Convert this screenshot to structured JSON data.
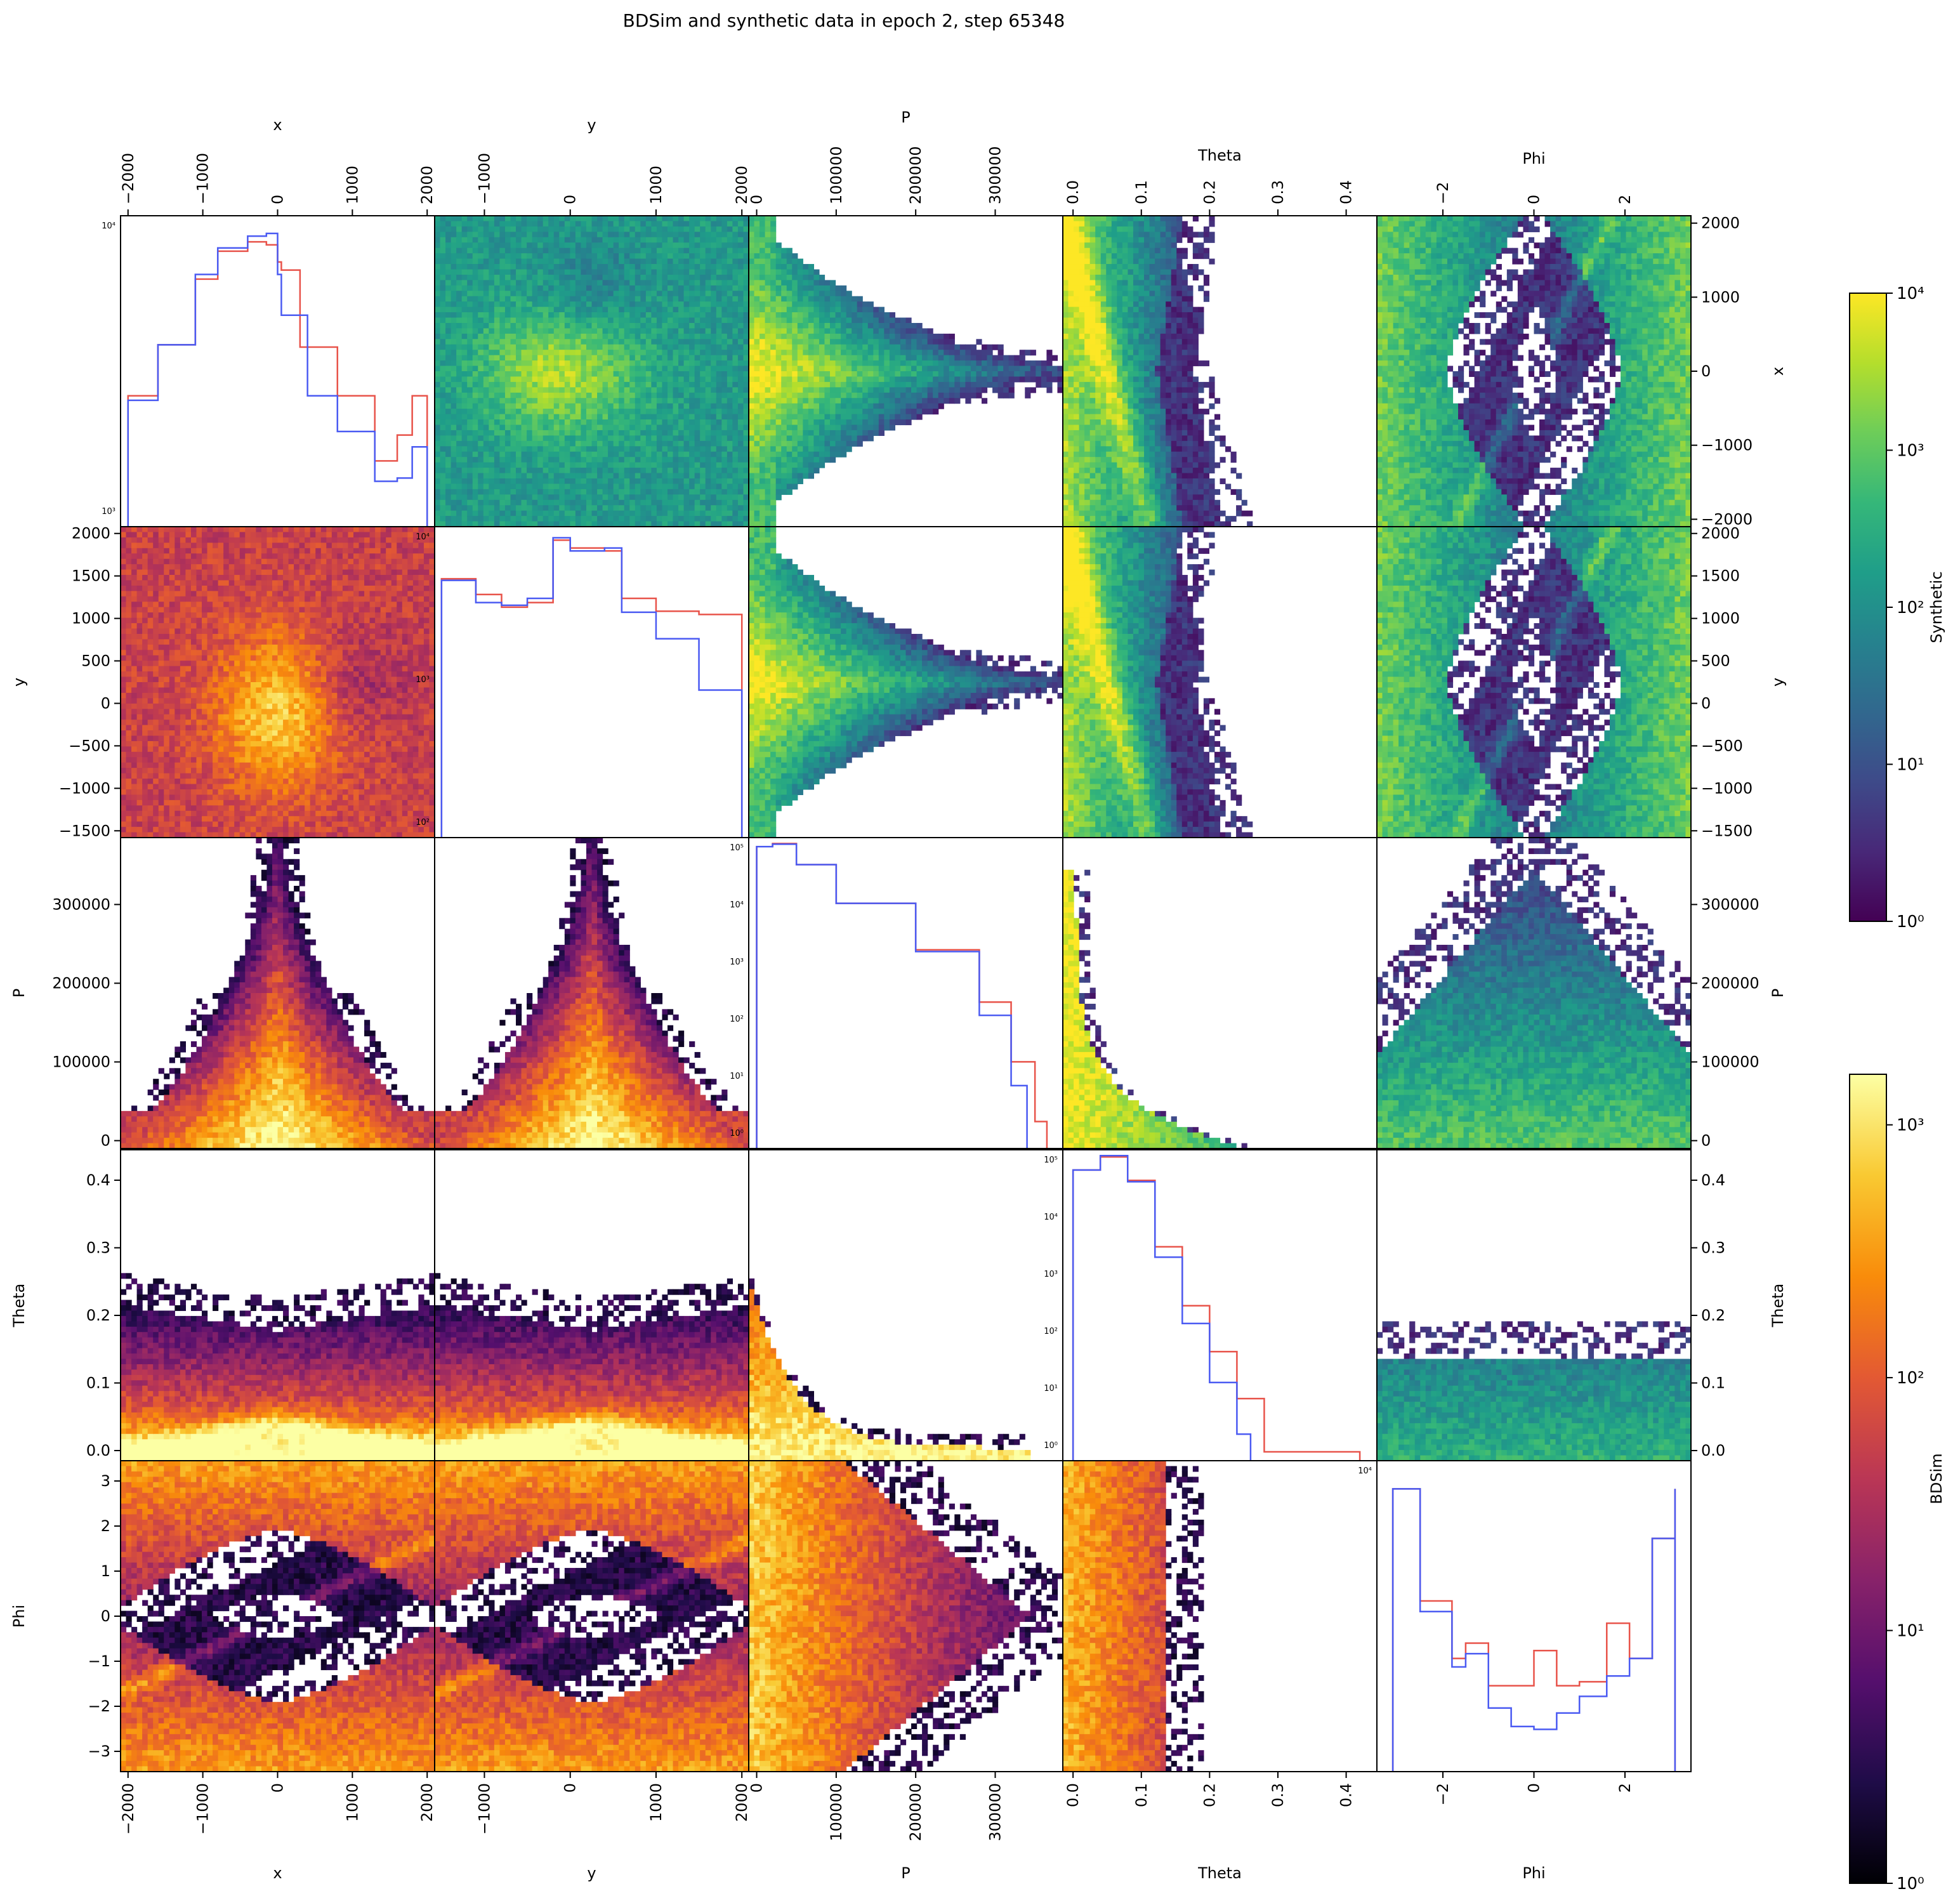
{
  "title": "BDSim and synthetic data in epoch 2, step 65348",
  "variables": [
    "x",
    "y",
    "P",
    "Theta",
    "Phi"
  ],
  "colors": {
    "bdsim_line": "#e8534a",
    "synthetic_line": "#4a5af2"
  },
  "colorbars": [
    {
      "label": "Synthetic",
      "colormap": "viridis",
      "scale": "log",
      "ticks": [
        "10⁰",
        "10¹",
        "10²",
        "10³",
        "10⁴"
      ]
    },
    {
      "label": "BDSim",
      "colormap": "inferno",
      "scale": "log",
      "ticks": [
        "10⁰",
        "10¹",
        "10²",
        "10³"
      ]
    }
  ],
  "chart_data": {
    "type": "heatmap",
    "layout": "pair-plot 5x5: diagonal = 1D histograms (red BDSim, blue Synthetic); upper triangle = Synthetic 2D histograms (viridis); lower triangle = BDSim 2D histograms (inferno)",
    "axes": {
      "x": {
        "label": "x",
        "lim": [
          -2100,
          2100
        ],
        "ticks": [
          -2000,
          -1000,
          0,
          1000,
          2000
        ]
      },
      "y": {
        "label": "y",
        "lim": [
          -1580,
          2080
        ],
        "ticks": [
          -1500,
          -1000,
          -500,
          0,
          500,
          1000,
          1500,
          2000
        ]
      },
      "P": {
        "label": "P",
        "lim": [
          -10000,
          385000
        ],
        "ticks": [
          0,
          100000,
          200000,
          300000
        ]
      },
      "Theta": {
        "label": "Theta",
        "lim": [
          -0.015,
          0.445
        ],
        "ticks": [
          0.0,
          0.1,
          0.2,
          0.3,
          0.4
        ]
      },
      "Phi": {
        "label": "Phi",
        "lim": [
          -3.45,
          3.45
        ],
        "ticks": [
          -3,
          -2,
          -1,
          0,
          1,
          2,
          3
        ]
      }
    },
    "top_tick_labels": {
      "x": [
        "−2000",
        "−1000",
        "0",
        "1000",
        "2000"
      ],
      "y": [
        "−1000",
        "0",
        "1000",
        "2000"
      ],
      "P": [
        "0",
        "100000",
        "200000",
        "300000"
      ],
      "Theta": [
        "0.0",
        "0.1",
        "0.2",
        "0.3",
        "0.4"
      ],
      "Phi": [
        "−2",
        "0",
        "2"
      ]
    },
    "left_tick_labels": {
      "y": [
        "−1500",
        "−1000",
        "−500",
        "0",
        "500",
        "1000",
        "1500",
        "2000"
      ],
      "P": [
        "0",
        "100000",
        "200000",
        "300000"
      ],
      "Theta": [
        "0.0",
        "0.1",
        "0.2",
        "0.3",
        "0.4"
      ],
      "Phi": [
        "−3",
        "−2",
        "−1",
        "0",
        "1",
        "2",
        "3"
      ]
    },
    "right_tick_labels": {
      "x": [
        "−2000",
        "−1000",
        "0",
        "1000",
        "2000"
      ],
      "y": [
        "−1500",
        "−1000",
        "−500",
        "0",
        "500",
        "1000",
        "1500",
        "2000"
      ],
      "P": [
        "0",
        "100000",
        "200000",
        "300000"
      ],
      "Theta": [
        "0.0",
        "0.1",
        "0.2",
        "0.3",
        "0.4"
      ]
    },
    "diag_y_labels": {
      "x": [
        "10⁴",
        "10³"
      ],
      "y": [
        "10⁴",
        "10³",
        "10²"
      ],
      "P": [
        "10⁵",
        "10⁴",
        "10³",
        "10²",
        "10¹",
        "10⁰"
      ],
      "Theta": [
        "10⁵",
        "10⁴",
        "10³",
        "10²",
        "10¹",
        "10⁰"
      ],
      "Phi": [
        "10⁴"
      ]
    },
    "histograms": {
      "x": {
        "bdsim": [
          [
            -2000,
            3500
          ],
          [
            -1600,
            6800
          ],
          [
            -1100,
            16000
          ],
          [
            -800,
            23000
          ],
          [
            -400,
            26000
          ],
          [
            -150,
            25000
          ],
          [
            0,
            20000
          ],
          [
            50,
            18000
          ],
          [
            300,
            6600
          ],
          [
            800,
            3500
          ],
          [
            1300,
            1500
          ],
          [
            1600,
            2100
          ],
          [
            1800,
            3500
          ],
          [
            2000,
            3500
          ]
        ],
        "synthetic": [
          [
            -2000,
            3300
          ],
          [
            -1600,
            6800
          ],
          [
            -1100,
            17000
          ],
          [
            -800,
            24000
          ],
          [
            -400,
            28000
          ],
          [
            -150,
            29000
          ],
          [
            0,
            17000
          ],
          [
            50,
            10000
          ],
          [
            400,
            3500
          ],
          [
            800,
            2200
          ],
          [
            1300,
            1150
          ],
          [
            1600,
            1200
          ],
          [
            1800,
            1800
          ],
          [
            2000,
            900
          ]
        ]
      },
      "y": {
        "bdsim": [
          [
            -1500,
            9000
          ],
          [
            -1100,
            6500
          ],
          [
            -800,
            5000
          ],
          [
            -500,
            5500
          ],
          [
            -200,
            20000
          ],
          [
            0,
            17000
          ],
          [
            400,
            16000
          ],
          [
            600,
            6000
          ],
          [
            1000,
            4600
          ],
          [
            1500,
            4300
          ],
          [
            2000,
            3600
          ]
        ],
        "synthetic": [
          [
            -1500,
            8700
          ],
          [
            -1100,
            5500
          ],
          [
            -800,
            5200
          ],
          [
            -500,
            6000
          ],
          [
            -200,
            21000
          ],
          [
            0,
            16000
          ],
          [
            400,
            17000
          ],
          [
            600,
            4500
          ],
          [
            1000,
            2600
          ],
          [
            1500,
            900
          ],
          [
            2000,
            60
          ]
        ]
      },
      "P": {
        "bdsim": [
          [
            0,
            80000
          ],
          [
            20000,
            90000
          ],
          [
            50000,
            40000
          ],
          [
            100000,
            9000
          ],
          [
            200000,
            1500
          ],
          [
            280000,
            200
          ],
          [
            320000,
            20
          ],
          [
            350000,
            2
          ],
          [
            365000,
            1
          ]
        ],
        "synthetic": [
          [
            0,
            80000
          ],
          [
            20000,
            88000
          ],
          [
            50000,
            40000
          ],
          [
            100000,
            9000
          ],
          [
            200000,
            1400
          ],
          [
            280000,
            120
          ],
          [
            320000,
            8
          ],
          [
            340000,
            1
          ]
        ]
      },
      "Theta": {
        "bdsim": [
          [
            0.0,
            60000
          ],
          [
            0.04,
            100000
          ],
          [
            0.08,
            40000
          ],
          [
            0.12,
            3000
          ],
          [
            0.16,
            300
          ],
          [
            0.2,
            50
          ],
          [
            0.24,
            8
          ],
          [
            0.28,
            1
          ],
          [
            0.36,
            1
          ],
          [
            0.42,
            1
          ]
        ],
        "synthetic": [
          [
            0.0,
            60000
          ],
          [
            0.04,
            105000
          ],
          [
            0.08,
            38000
          ],
          [
            0.12,
            2000
          ],
          [
            0.16,
            150
          ],
          [
            0.2,
            15
          ],
          [
            0.24,
            2
          ],
          [
            0.26,
            1
          ]
        ]
      },
      "Phi": {
        "bdsim": [
          [
            -3.1,
            30000
          ],
          [
            -2.5,
            12000
          ],
          [
            -1.8,
            7500
          ],
          [
            -1.5,
            8500
          ],
          [
            -1.0,
            6000
          ],
          [
            -0.5,
            6000
          ],
          [
            0.0,
            8000
          ],
          [
            0.5,
            6000
          ],
          [
            1.0,
            6200
          ],
          [
            1.6,
            10000
          ],
          [
            2.1,
            7500
          ],
          [
            2.6,
            20000
          ],
          [
            3.1,
            30000
          ]
        ],
        "synthetic": [
          [
            -3.1,
            30000
          ],
          [
            -2.5,
            11000
          ],
          [
            -1.8,
            7000
          ],
          [
            -1.5,
            7800
          ],
          [
            -1.0,
            5000
          ],
          [
            -0.5,
            4300
          ],
          [
            0.0,
            4200
          ],
          [
            0.5,
            4800
          ],
          [
            1.0,
            5500
          ],
          [
            1.6,
            6500
          ],
          [
            2.1,
            7500
          ],
          [
            2.6,
            20000
          ],
          [
            3.1,
            30000
          ]
        ]
      }
    }
  }
}
